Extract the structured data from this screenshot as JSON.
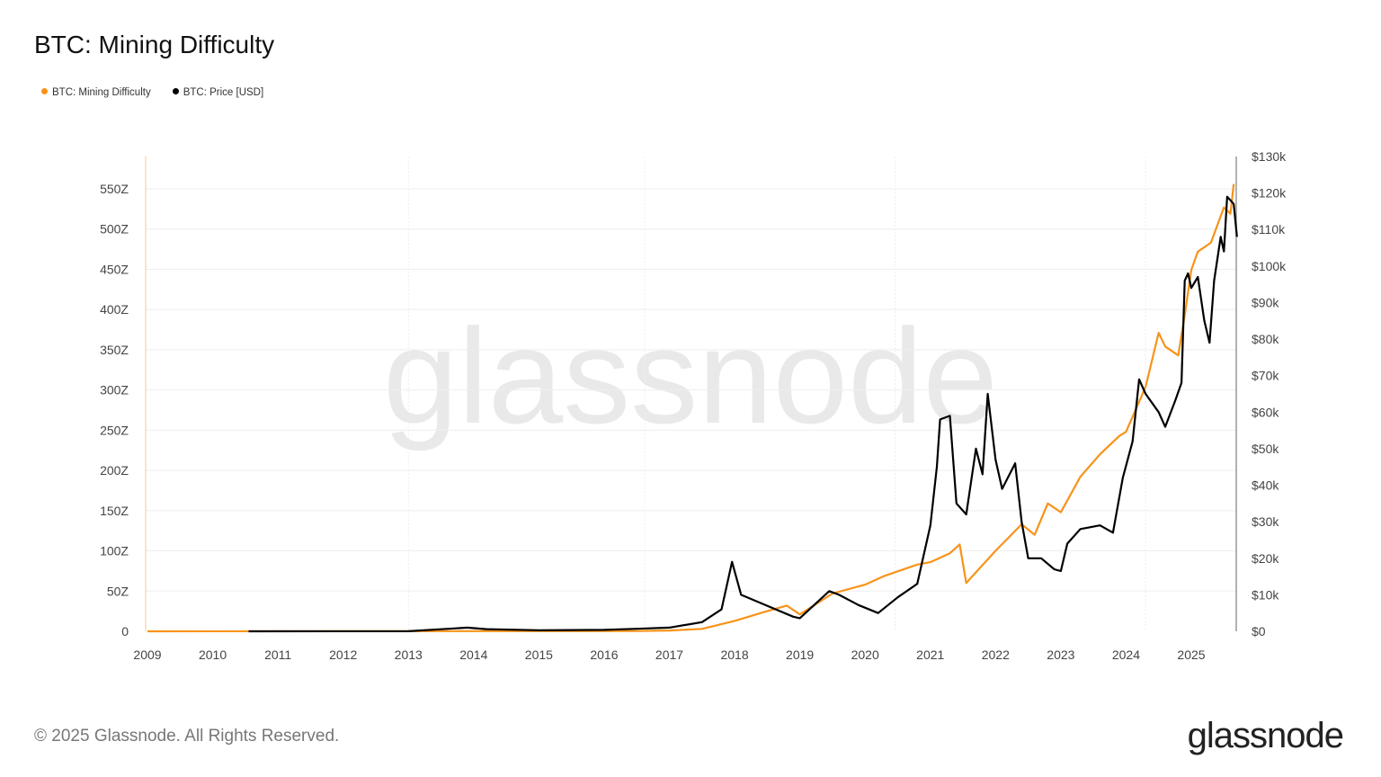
{
  "title": "BTC: Mining Difficulty",
  "footer": "© 2025 Glassnode. All Rights Reserved.",
  "logo": "glassnode",
  "watermark": "glassnode",
  "chart_data": {
    "type": "line",
    "title": "BTC: Mining Difficulty",
    "legend_position": "top-left",
    "grid": true,
    "x_ticks": [
      "2009",
      "2010",
      "2011",
      "2012",
      "2013",
      "2014",
      "2015",
      "2016",
      "2017",
      "2018",
      "2019",
      "2020",
      "2021",
      "2022",
      "2023",
      "2024",
      "2025"
    ],
    "xlim": [
      2009,
      2025.8
    ],
    "y_left": {
      "ylim": [
        0,
        590
      ],
      "ticks": [
        0,
        50,
        100,
        150,
        200,
        250,
        300,
        350,
        400,
        450,
        500,
        550
      ],
      "tick_labels": [
        "0",
        "50Z",
        "100Z",
        "150Z",
        "200Z",
        "250Z",
        "300Z",
        "350Z",
        "400Z",
        "450Z",
        "500Z",
        "550Z"
      ]
    },
    "y_right": {
      "ylim": [
        0,
        130
      ],
      "ticks": [
        0,
        10,
        20,
        30,
        40,
        50,
        60,
        70,
        80,
        90,
        100,
        110,
        120,
        130
      ],
      "tick_labels": [
        "$0",
        "$10k",
        "$20k",
        "$30k",
        "$40k",
        "$50k",
        "$60k",
        "$70k",
        "$80k",
        "$90k",
        "$100k",
        "$110k",
        "$120k",
        "$130k"
      ]
    },
    "series": [
      {
        "name": "BTC: Mining Difficulty",
        "color": "#f7931a",
        "axis": "left",
        "unit": "Z",
        "points": [
          [
            2009,
            0
          ],
          [
            2016.5,
            0.3
          ],
          [
            2017,
            1
          ],
          [
            2017.5,
            3
          ],
          [
            2018,
            13
          ],
          [
            2018.5,
            25
          ],
          [
            2018.8,
            32
          ],
          [
            2019.0,
            21
          ],
          [
            2019.5,
            47
          ],
          [
            2020.0,
            58
          ],
          [
            2020.3,
            69
          ],
          [
            2020.8,
            83
          ],
          [
            2021.0,
            86
          ],
          [
            2021.3,
            97
          ],
          [
            2021.45,
            108
          ],
          [
            2021.55,
            60
          ],
          [
            2021.65,
            69
          ],
          [
            2022.0,
            100
          ],
          [
            2022.4,
            133
          ],
          [
            2022.6,
            120
          ],
          [
            2022.8,
            159
          ],
          [
            2023.0,
            148
          ],
          [
            2023.3,
            192
          ],
          [
            2023.6,
            220
          ],
          [
            2023.9,
            243
          ],
          [
            2024.0,
            248
          ],
          [
            2024.3,
            304
          ],
          [
            2024.5,
            371
          ],
          [
            2024.6,
            354
          ],
          [
            2024.8,
            343
          ],
          [
            2024.9,
            393
          ],
          [
            2025.0,
            449
          ],
          [
            2025.1,
            472
          ],
          [
            2025.3,
            483
          ],
          [
            2025.5,
            527
          ],
          [
            2025.6,
            519
          ],
          [
            2025.65,
            556
          ]
        ]
      },
      {
        "name": "BTC: Price [USD]",
        "color": "#000000",
        "axis": "right",
        "unit": "k USD",
        "points": [
          [
            2010.55,
            0
          ],
          [
            2013.0,
            0.02
          ],
          [
            2013.9,
            1.0
          ],
          [
            2014.2,
            0.6
          ],
          [
            2015,
            0.3
          ],
          [
            2016,
            0.4
          ],
          [
            2016.5,
            0.7
          ],
          [
            2017,
            1.0
          ],
          [
            2017.5,
            2.5
          ],
          [
            2017.8,
            6
          ],
          [
            2017.96,
            19
          ],
          [
            2018.1,
            10
          ],
          [
            2018.5,
            7
          ],
          [
            2018.9,
            4
          ],
          [
            2019.0,
            3.6
          ],
          [
            2019.45,
            11
          ],
          [
            2019.6,
            10
          ],
          [
            2019.9,
            7.2
          ],
          [
            2020.2,
            5
          ],
          [
            2020.5,
            9.3
          ],
          [
            2020.8,
            13
          ],
          [
            2021.0,
            29
          ],
          [
            2021.1,
            45
          ],
          [
            2021.15,
            58
          ],
          [
            2021.3,
            59
          ],
          [
            2021.4,
            35
          ],
          [
            2021.55,
            32
          ],
          [
            2021.7,
            50
          ],
          [
            2021.8,
            43
          ],
          [
            2021.88,
            65
          ],
          [
            2022.0,
            47
          ],
          [
            2022.1,
            39
          ],
          [
            2022.3,
            46
          ],
          [
            2022.4,
            30
          ],
          [
            2022.5,
            20
          ],
          [
            2022.7,
            20
          ],
          [
            2022.9,
            17
          ],
          [
            2023.0,
            16.5
          ],
          [
            2023.1,
            24
          ],
          [
            2023.3,
            28
          ],
          [
            2023.6,
            29
          ],
          [
            2023.8,
            27
          ],
          [
            2023.95,
            42
          ],
          [
            2024.1,
            52
          ],
          [
            2024.2,
            69
          ],
          [
            2024.3,
            65
          ],
          [
            2024.5,
            60
          ],
          [
            2024.6,
            56
          ],
          [
            2024.75,
            63
          ],
          [
            2024.85,
            68
          ],
          [
            2024.9,
            96
          ],
          [
            2024.95,
            98
          ],
          [
            2025.0,
            94
          ],
          [
            2025.1,
            97
          ],
          [
            2025.2,
            85
          ],
          [
            2025.28,
            79
          ],
          [
            2025.35,
            96
          ],
          [
            2025.45,
            108
          ],
          [
            2025.5,
            104
          ],
          [
            2025.55,
            119
          ],
          [
            2025.65,
            117
          ],
          [
            2025.7,
            108
          ]
        ]
      }
    ]
  }
}
